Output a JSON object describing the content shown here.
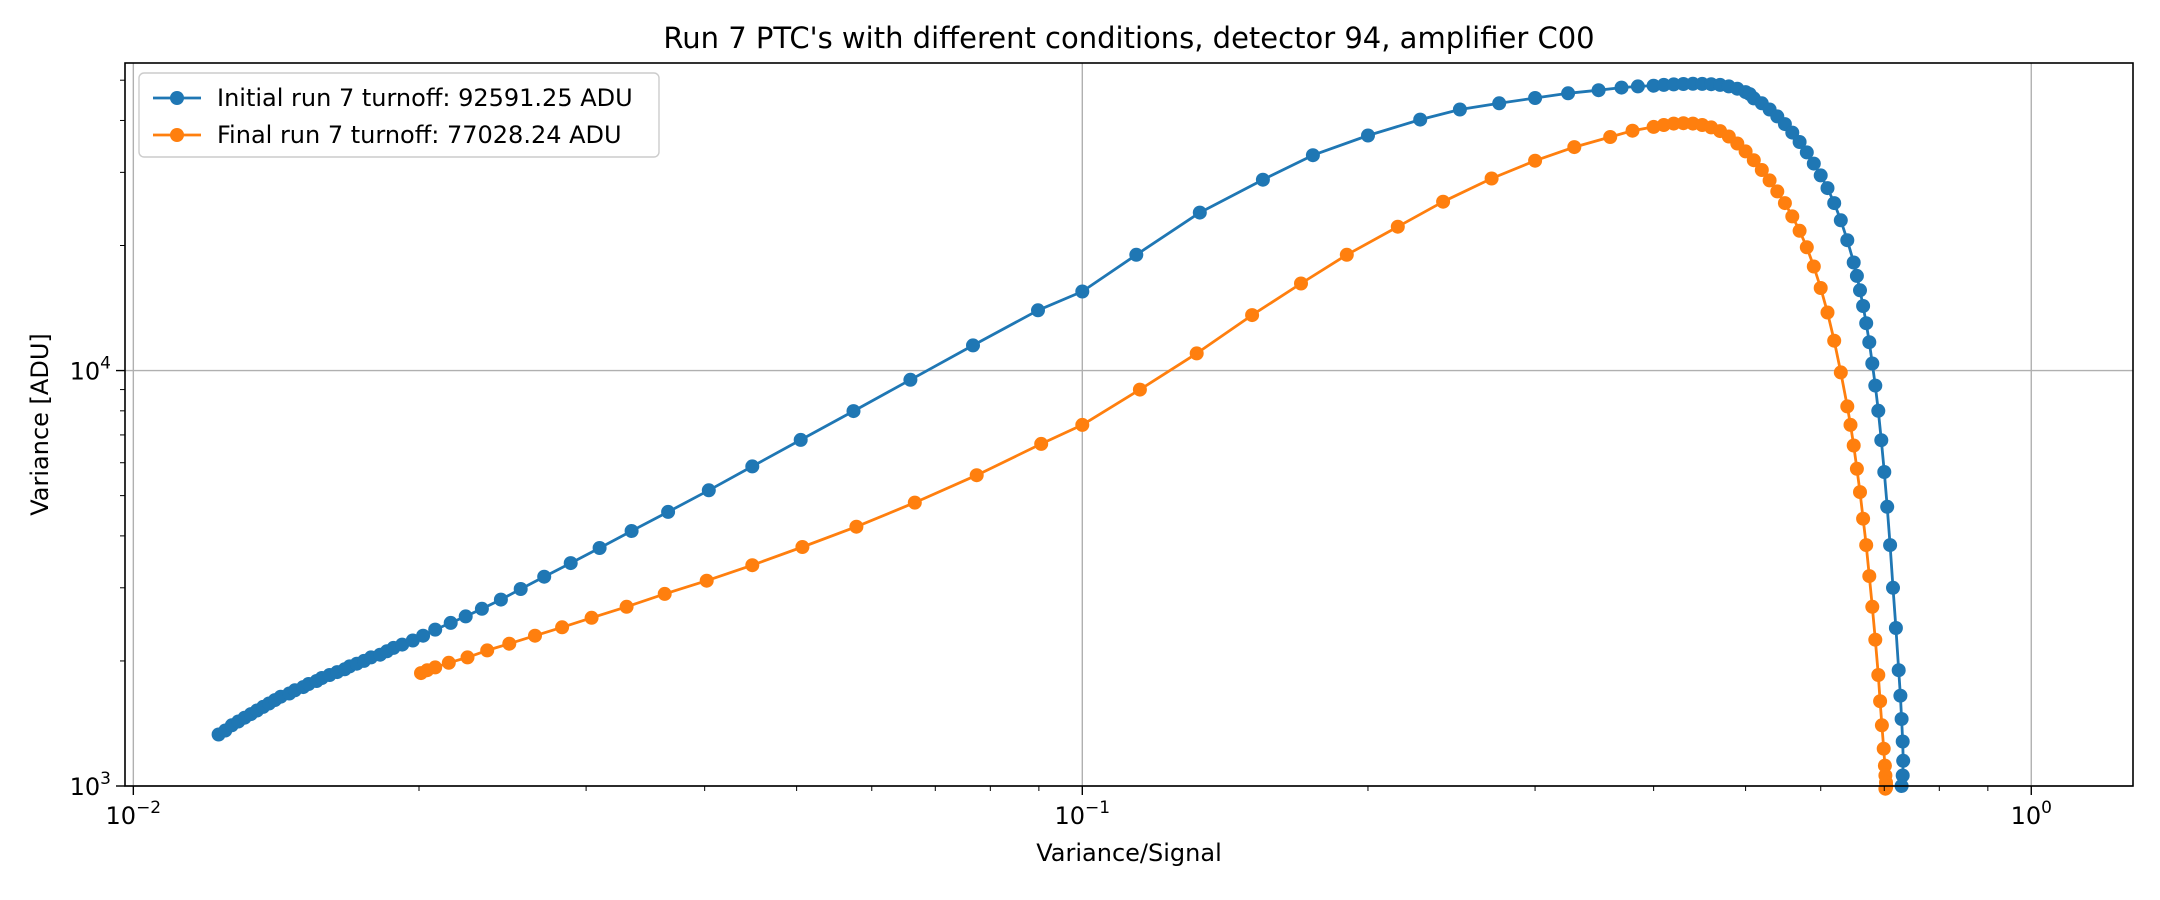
{
  "chart_data": {
    "type": "line",
    "title": "Run 7 PTC's with different conditions, detector 94, amplifier C00",
    "xlabel": "Variance/Signal",
    "ylabel": "Variance [ADU]",
    "xscale": "log",
    "yscale": "log",
    "xlim": [
      0.0098,
      1.28
    ],
    "ylim": [
      1000,
      55000
    ],
    "xticks": [
      {
        "value": 0.01,
        "base": "10",
        "exp": "−2"
      },
      {
        "value": 0.1,
        "base": "10",
        "exp": "−1"
      },
      {
        "value": 1,
        "base": "10",
        "exp": "0"
      }
    ],
    "yticks": [
      {
        "value": 1000,
        "base": "10",
        "exp": "3"
      },
      {
        "value": 10000,
        "base": "10",
        "exp": "4"
      }
    ],
    "grid": true,
    "legend_position": "top-left",
    "series": [
      {
        "name": "Initial run 7 turnoff: 92591.25 ADU",
        "color": "#1f77b4",
        "x": [
          0.0123,
          0.0125,
          0.0127,
          0.0129,
          0.0131,
          0.0133,
          0.0135,
          0.0137,
          0.0139,
          0.0141,
          0.0143,
          0.0146,
          0.0148,
          0.0151,
          0.0153,
          0.0156,
          0.0158,
          0.0161,
          0.0164,
          0.0167,
          0.0169,
          0.0172,
          0.0175,
          0.0178,
          0.0182,
          0.0185,
          0.0188,
          0.0192,
          0.0197,
          0.0202,
          0.0208,
          0.0216,
          0.0224,
          0.0233,
          0.0244,
          0.0256,
          0.0271,
          0.0289,
          0.031,
          0.0335,
          0.0366,
          0.0404,
          0.0449,
          0.0505,
          0.0574,
          0.0659,
          0.0767,
          0.0898,
          0.1,
          0.114,
          0.133,
          0.155,
          0.175,
          0.2,
          0.227,
          0.25,
          0.275,
          0.3,
          0.325,
          0.35,
          0.37,
          0.385,
          0.4,
          0.41,
          0.42,
          0.43,
          0.44,
          0.45,
          0.46,
          0.47,
          0.48,
          0.49,
          0.5,
          0.505,
          0.51,
          0.52,
          0.53,
          0.54,
          0.55,
          0.56,
          0.57,
          0.58,
          0.59,
          0.6,
          0.61,
          0.62,
          0.63,
          0.64,
          0.65,
          0.655,
          0.66,
          0.665,
          0.67,
          0.675,
          0.68,
          0.685,
          0.69,
          0.695,
          0.7,
          0.705,
          0.71,
          0.715,
          0.72,
          0.725,
          0.728,
          0.73,
          0.732,
          0.733,
          0.732,
          0.73
        ],
        "y": [
          1330,
          1360,
          1400,
          1430,
          1460,
          1490,
          1520,
          1550,
          1580,
          1610,
          1640,
          1670,
          1700,
          1730,
          1760,
          1790,
          1820,
          1850,
          1880,
          1910,
          1940,
          1970,
          2000,
          2040,
          2070,
          2110,
          2150,
          2190,
          2240,
          2300,
          2380,
          2470,
          2560,
          2670,
          2810,
          2980,
          3190,
          3440,
          3740,
          4110,
          4570,
          5150,
          5880,
          6810,
          7990,
          9500,
          11500,
          13970,
          15500,
          19000,
          24000,
          28800,
          33000,
          36800,
          40200,
          42500,
          44000,
          45300,
          46500,
          47300,
          48000,
          48300,
          48500,
          48700,
          48850,
          48950,
          49000,
          48980,
          48900,
          48700,
          48300,
          47700,
          46800,
          46300,
          45200,
          44000,
          42500,
          40900,
          39200,
          37400,
          35500,
          33500,
          31500,
          29500,
          27500,
          25300,
          23000,
          20600,
          18200,
          16900,
          15600,
          14300,
          13000,
          11700,
          10400,
          9200,
          8000,
          6800,
          5700,
          4700,
          3800,
          3000,
          2400,
          1900,
          1650,
          1450,
          1280,
          1150,
          1060,
          1000
        ]
      },
      {
        "name": "Final run 7 turnoff: 77028.24 ADU",
        "color": "#ff7f0e",
        "x": [
          0.0201,
          0.0204,
          0.0208,
          0.0215,
          0.0225,
          0.0236,
          0.0249,
          0.0265,
          0.0283,
          0.0304,
          0.0331,
          0.0363,
          0.0402,
          0.0449,
          0.0507,
          0.0578,
          0.0666,
          0.0774,
          0.0905,
          0.1,
          0.115,
          0.132,
          0.151,
          0.17,
          0.19,
          0.215,
          0.24,
          0.27,
          0.3,
          0.33,
          0.36,
          0.38,
          0.4,
          0.41,
          0.42,
          0.43,
          0.44,
          0.45,
          0.46,
          0.47,
          0.48,
          0.49,
          0.5,
          0.51,
          0.52,
          0.53,
          0.54,
          0.55,
          0.56,
          0.57,
          0.58,
          0.59,
          0.6,
          0.61,
          0.62,
          0.63,
          0.64,
          0.645,
          0.65,
          0.655,
          0.66,
          0.665,
          0.67,
          0.675,
          0.68,
          0.685,
          0.69,
          0.693,
          0.696,
          0.699,
          0.701,
          0.702,
          0.703,
          0.7035,
          0.703,
          0.702
        ],
        "y": [
          1870,
          1900,
          1930,
          1980,
          2040,
          2120,
          2200,
          2300,
          2410,
          2540,
          2700,
          2900,
          3120,
          3400,
          3760,
          4210,
          4810,
          5600,
          6660,
          7400,
          9000,
          11000,
          13600,
          16200,
          19000,
          22200,
          25500,
          29000,
          32000,
          34500,
          36500,
          37800,
          38600,
          39000,
          39300,
          39400,
          39300,
          39000,
          38500,
          37700,
          36600,
          35200,
          33700,
          32100,
          30400,
          28700,
          27000,
          25300,
          23500,
          21700,
          19800,
          17800,
          15800,
          13800,
          11800,
          9900,
          8200,
          7400,
          6600,
          5800,
          5100,
          4400,
          3800,
          3200,
          2700,
          2250,
          1850,
          1600,
          1400,
          1230,
          1120,
          1060,
          1020,
          1000,
          990,
          985
        ]
      }
    ]
  }
}
